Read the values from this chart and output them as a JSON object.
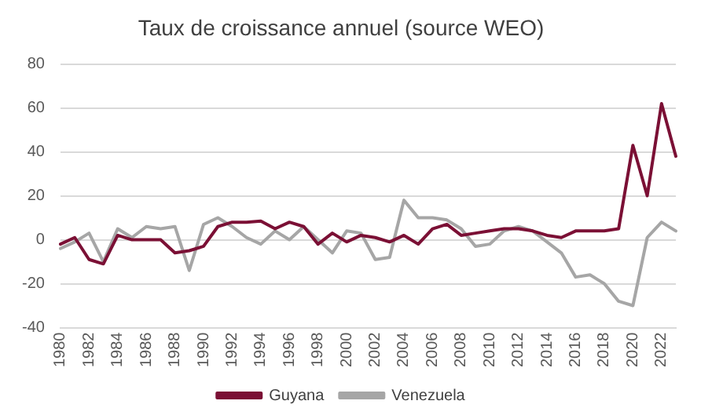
{
  "chart_data": {
    "type": "line",
    "title": "Taux de croissance annuel (source WEO)",
    "categories": [
      "1980",
      null,
      "1982",
      null,
      "1984",
      null,
      "1986",
      null,
      "1988",
      null,
      "1990",
      null,
      "1992",
      null,
      "1994",
      null,
      "1996",
      null,
      "1998",
      null,
      "2000",
      null,
      "2002",
      null,
      "2004",
      null,
      "2006",
      null,
      "2008",
      null,
      "2010",
      null,
      "2012",
      null,
      "2014",
      null,
      "2016",
      null,
      "2018",
      null,
      "2020",
      null,
      "2022",
      null
    ],
    "series": [
      {
        "name": "Guyana",
        "color": "#7b1035",
        "values": [
          -2,
          1,
          -9,
          -11,
          2,
          0,
          0,
          0,
          -6,
          -5,
          -3,
          6,
          8,
          8,
          8.5,
          5,
          8,
          6,
          -2,
          3,
          -1,
          2,
          1,
          -1,
          2,
          -2,
          5,
          7,
          2,
          3,
          4,
          5,
          5,
          4,
          2,
          1,
          4,
          4,
          4,
          5,
          43,
          20,
          62,
          38
        ]
      },
      {
        "name": "Venezuela",
        "color": "#a6a6a6",
        "values": [
          -4,
          -1,
          3,
          -10,
          5,
          1,
          6,
          5,
          6,
          -14,
          7,
          10,
          6,
          1,
          -2,
          4,
          0,
          6,
          0,
          -6,
          4,
          3,
          -9,
          -8,
          18,
          10,
          10,
          9,
          5,
          -3,
          -2,
          4,
          6,
          4,
          -1,
          -6,
          -17,
          -16,
          -20,
          -28,
          -30,
          1,
          8,
          4
        ]
      }
    ],
    "ylim": [
      -40,
      80
    ],
    "yticks": [
      -40,
      -20,
      0,
      20,
      40,
      60,
      80
    ],
    "grid": "y",
    "legend": "bottom",
    "marker": "none",
    "line_style": "solid"
  }
}
